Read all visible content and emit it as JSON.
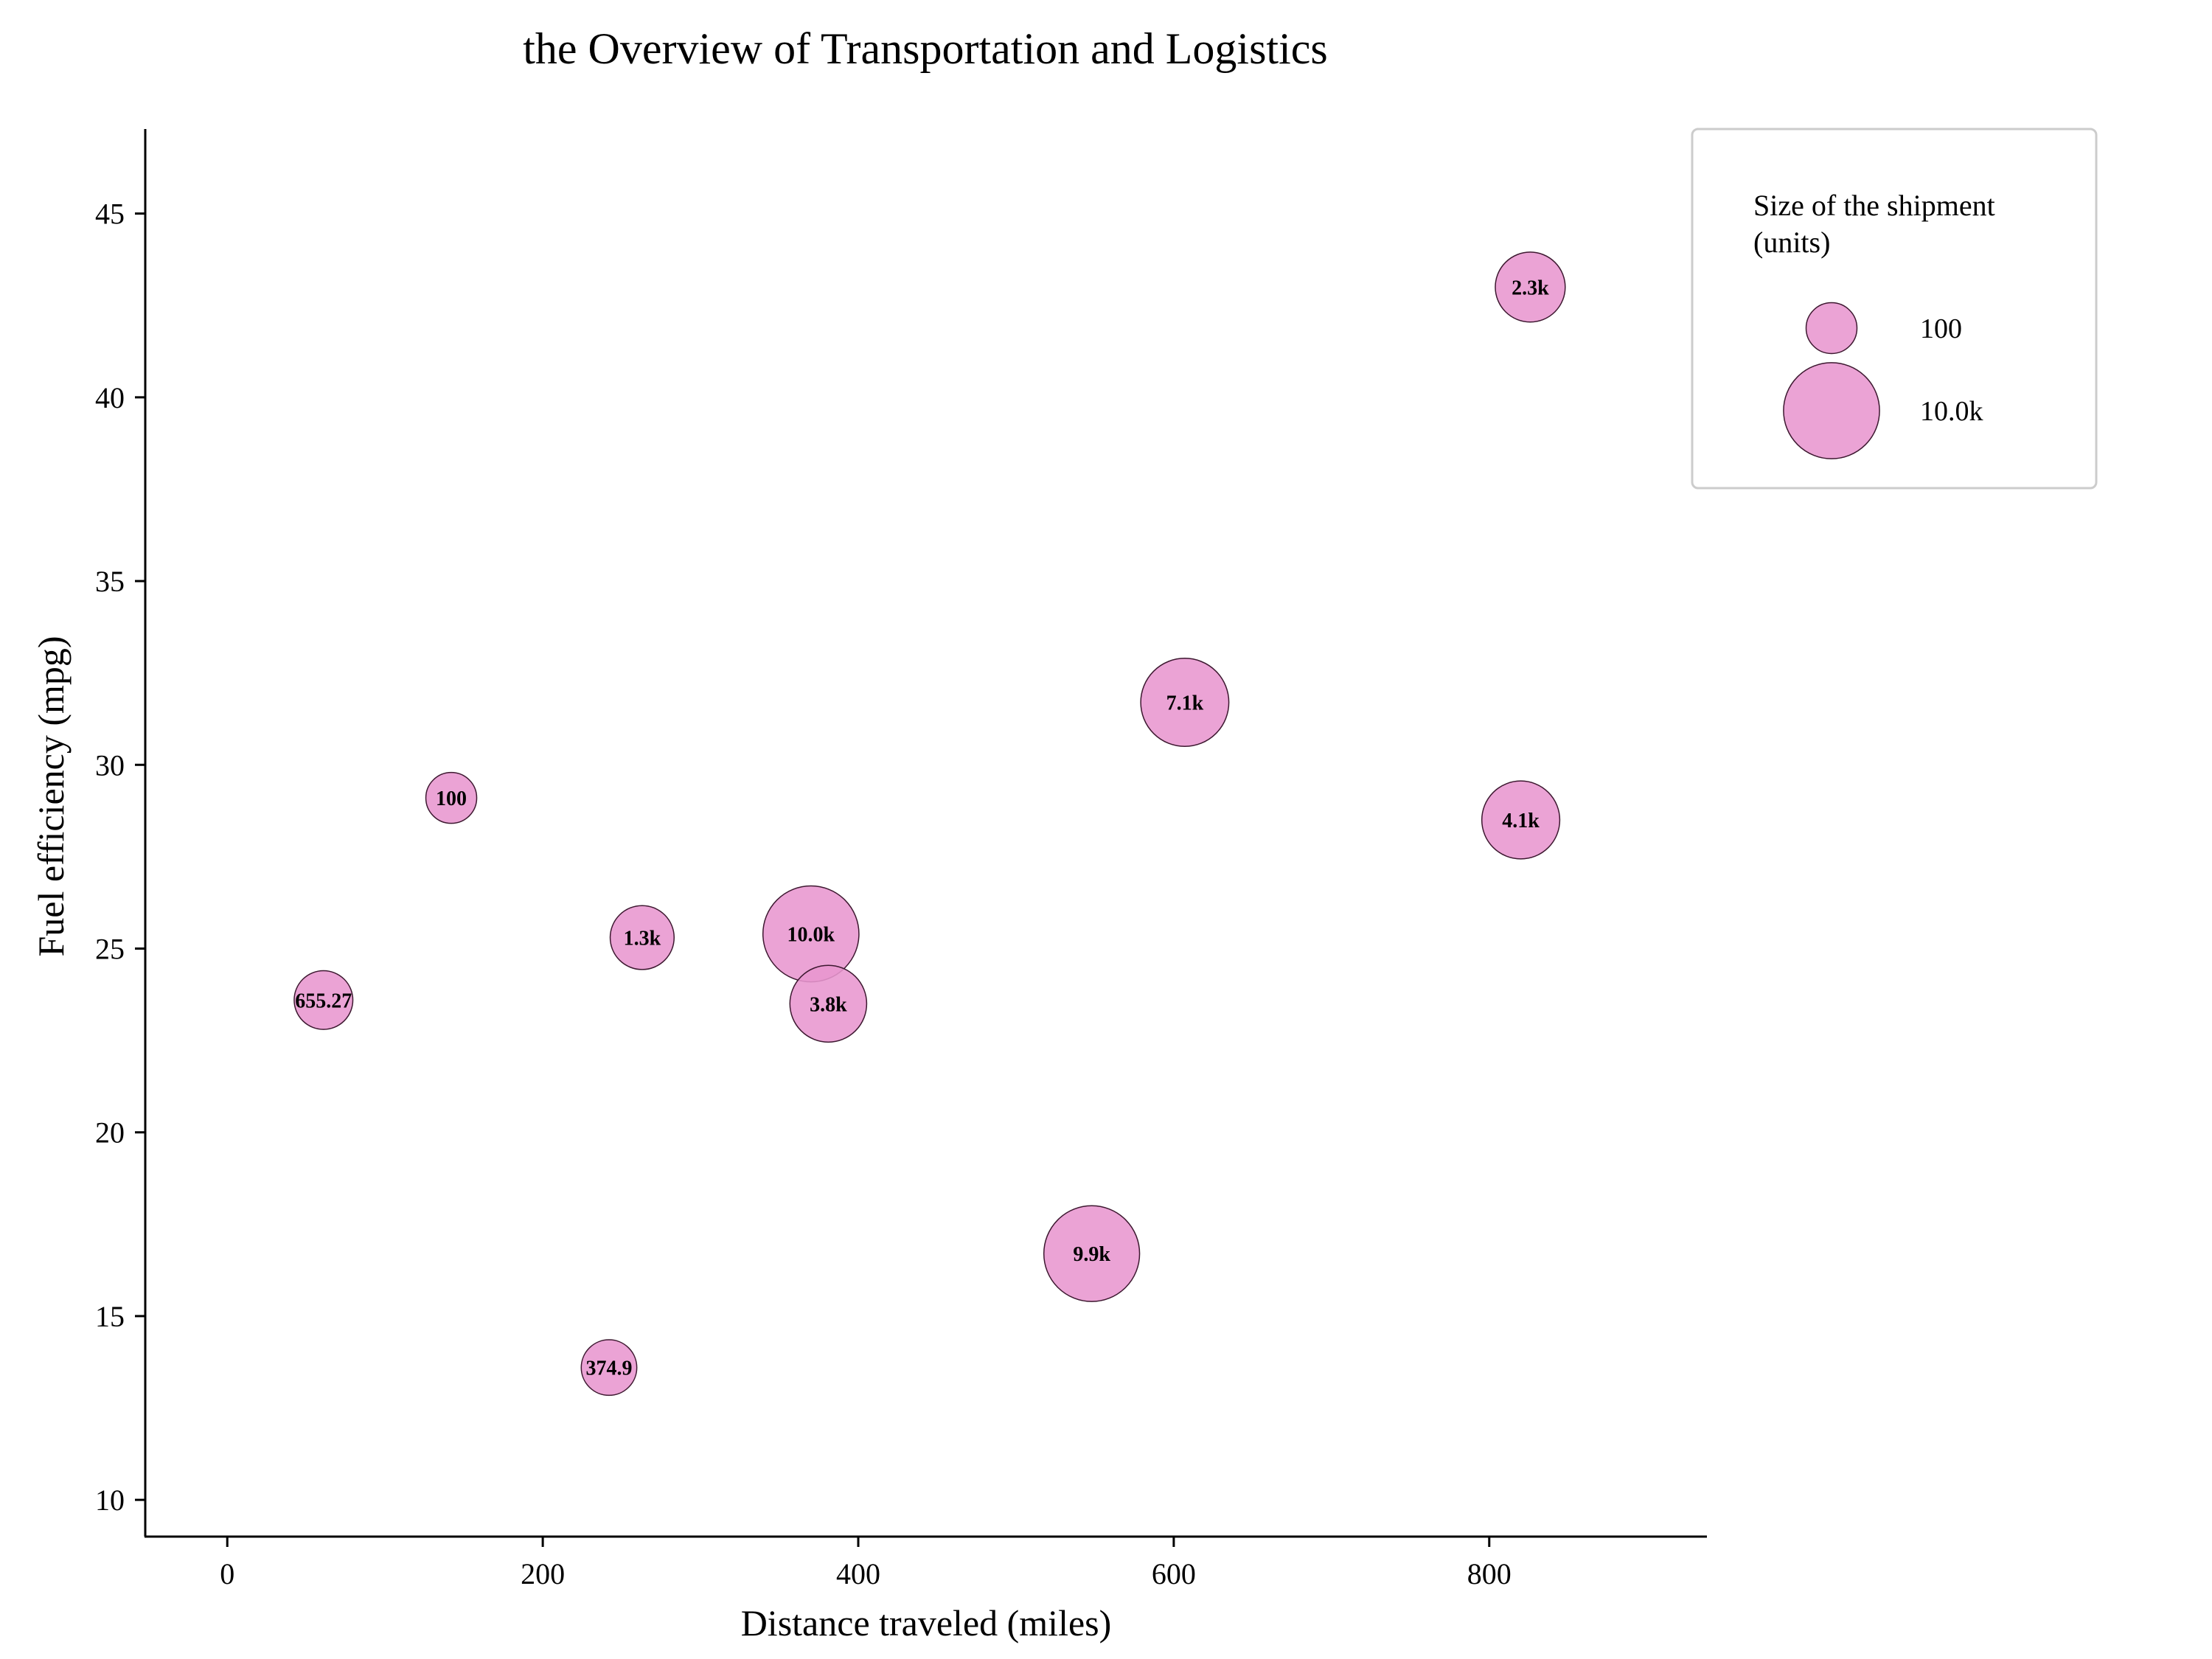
{
  "chart_data": {
    "type": "scatter",
    "title": "the Overview of Transportation and Logistics",
    "xlabel": "Distance traveled (miles)",
    "ylabel": "Fuel efficiency (mpg)",
    "xlim": [
      -52,
      938
    ],
    "ylim": [
      9,
      47.3
    ],
    "xticks": [
      0,
      200,
      400,
      600,
      800
    ],
    "yticks": [
      10,
      15,
      20,
      25,
      30,
      35,
      40,
      45
    ],
    "xtick_labels": [
      "0",
      "200",
      "400",
      "600",
      "800"
    ],
    "ytick_labels": [
      "10",
      "15",
      "20",
      "25",
      "30",
      "35",
      "40",
      "45"
    ],
    "grid": false,
    "legend_position": "top-right",
    "legend_title": "Size of the shipment\n(units)",
    "legend_entries": [
      {
        "label": "100",
        "size": 100
      },
      {
        "label": "10.0k",
        "size": 10000
      }
    ],
    "points": [
      {
        "x": 826,
        "y": 43.0,
        "size": 2300,
        "label": "2.3k"
      },
      {
        "x": 607,
        "y": 31.7,
        "size": 7100,
        "label": "7.1k"
      },
      {
        "x": 820,
        "y": 28.5,
        "size": 4100,
        "label": "4.1k"
      },
      {
        "x": 142,
        "y": 29.1,
        "size": 100,
        "label": "100"
      },
      {
        "x": 263,
        "y": 25.3,
        "size": 1300,
        "label": "1.3k"
      },
      {
        "x": 370,
        "y": 25.4,
        "size": 10000,
        "label": "10.0k"
      },
      {
        "x": 381,
        "y": 23.5,
        "size": 3800,
        "label": "3.8k"
      },
      {
        "x": 61,
        "y": 23.6,
        "size": 655.27,
        "label": "655.27"
      },
      {
        "x": 548,
        "y": 16.7,
        "size": 9900,
        "label": "9.9k"
      },
      {
        "x": 242,
        "y": 13.6,
        "size": 374.9,
        "label": "374.9"
      }
    ],
    "colors": {
      "bubble_fill": "#e896cf",
      "bubble_stroke": "#3d1830",
      "axis": "#000000",
      "legend_border": "#cccccc"
    }
  }
}
